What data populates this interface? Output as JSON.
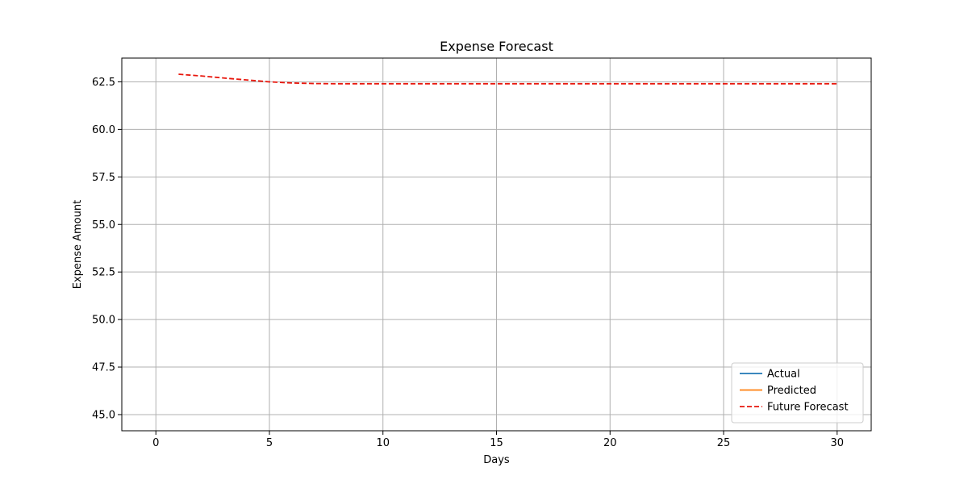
{
  "chart_data": {
    "type": "line",
    "title": "Expense Forecast",
    "xlabel": "Days",
    "ylabel": "Expense Amount",
    "xlim": [
      -1.5,
      31.5
    ],
    "ylim": [
      44.15,
      63.75
    ],
    "xticks": [
      0,
      5,
      10,
      15,
      20,
      25,
      30
    ],
    "xtick_labels": [
      "0",
      "5",
      "10",
      "15",
      "20",
      "25",
      "30"
    ],
    "yticks": [
      45.0,
      47.5,
      50.0,
      52.5,
      55.0,
      57.5,
      60.0,
      62.5
    ],
    "ytick_labels": [
      "45.0",
      "47.5",
      "50.0",
      "52.5",
      "55.0",
      "57.5",
      "60.0",
      "62.5"
    ],
    "grid": true,
    "legend_position": "lower-right",
    "series": [
      {
        "name": "Actual",
        "color": "#1f77b4",
        "style": "solid",
        "x": [],
        "y": []
      },
      {
        "name": "Predicted",
        "color": "#ff7f0e",
        "style": "solid",
        "x": [],
        "y": []
      },
      {
        "name": "Future Forecast",
        "color": "#e8180e",
        "style": "dashed",
        "x": [
          1,
          2,
          3,
          4,
          5,
          6,
          7,
          8,
          9,
          10,
          11,
          12,
          13,
          14,
          15,
          16,
          17,
          18,
          19,
          20,
          21,
          22,
          23,
          24,
          25,
          26,
          27,
          28,
          29,
          30
        ],
        "y": [
          62.9,
          62.81,
          62.7,
          62.6,
          62.5,
          62.44,
          62.41,
          62.4,
          62.4,
          62.4,
          62.4,
          62.4,
          62.4,
          62.4,
          62.4,
          62.4,
          62.4,
          62.4,
          62.4,
          62.4,
          62.4,
          62.4,
          62.4,
          62.4,
          62.4,
          62.4,
          62.4,
          62.4,
          62.4,
          62.4
        ]
      }
    ]
  }
}
